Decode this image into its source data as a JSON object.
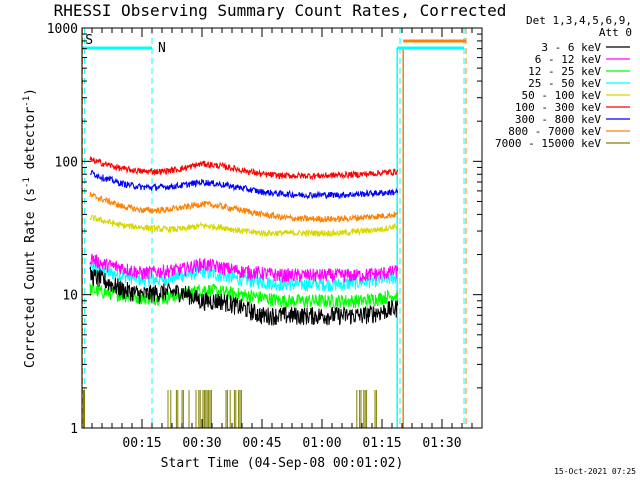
{
  "chart_data": {
    "type": "line",
    "title": "RHESSI Observing Summary Count Rates, Corrected",
    "xlabel": "Start Time (04-Sep-08 00:01:02)",
    "ylabel": "Corrected Count Rate (s",
    "ylabel_exp1": "-1",
    "ylabel_mid": " detector",
    "ylabel_exp2": "-1",
    "ylabel_end": ")",
    "yscale": "log",
    "ylim": [
      1,
      1000
    ],
    "xlim_minutes": [
      0,
      100
    ],
    "x_ticks": [
      {
        "label": "00:15",
        "minute": 15
      },
      {
        "label": "00:30",
        "minute": 30
      },
      {
        "label": "00:45",
        "minute": 45
      },
      {
        "label": "01:00",
        "minute": 60
      },
      {
        "label": "01:15",
        "minute": 75
      },
      {
        "label": "01:30",
        "minute": 90
      }
    ],
    "y_ticks": [
      {
        "label": "1",
        "value": 1
      },
      {
        "label": "10",
        "value": 10
      },
      {
        "label": "100",
        "value": 100
      },
      {
        "label": "1000",
        "value": 1000
      }
    ],
    "legend_header": [
      "Det 1,3,4,5,6,9,",
      "Att 0"
    ],
    "legend_placement": "right",
    "series": [
      {
        "name": "3 - 6 keV",
        "color": "#000000",
        "x": [
          2,
          5,
          10,
          15,
          20,
          25,
          30,
          35,
          40,
          45,
          50,
          55,
          60,
          65,
          70,
          75,
          79
        ],
        "values": [
          14,
          13,
          11,
          10,
          10.5,
          10.5,
          9,
          9,
          8,
          7,
          7,
          7,
          7,
          7,
          7,
          7.5,
          8
        ]
      },
      {
        "name": "6 - 12 keV",
        "color": "#ff00ff",
        "x": [
          2,
          5,
          10,
          15,
          20,
          25,
          30,
          35,
          40,
          45,
          50,
          55,
          60,
          65,
          70,
          75,
          79
        ],
        "values": [
          19,
          17,
          16,
          14.5,
          15,
          15.5,
          17,
          16,
          15,
          14.5,
          14,
          14,
          14,
          14,
          14,
          14.5,
          15
        ]
      },
      {
        "name": "12 - 25 keV",
        "color": "#00ff00",
        "x": [
          2,
          5,
          10,
          15,
          20,
          25,
          30,
          35,
          40,
          45,
          50,
          55,
          60,
          65,
          70,
          75,
          79
        ],
        "values": [
          11,
          10.5,
          10,
          9.5,
          9.5,
          10,
          11,
          10.5,
          10,
          9.5,
          9,
          9,
          9,
          9,
          9,
          9.5,
          10
        ]
      },
      {
        "name": "25 - 50 keV",
        "color": "#00ffff",
        "x": [
          2,
          5,
          10,
          15,
          20,
          25,
          30,
          35,
          40,
          45,
          50,
          55,
          60,
          65,
          70,
          75,
          79
        ],
        "values": [
          16,
          15,
          14,
          13,
          13,
          14,
          15,
          14,
          13,
          12.5,
          12,
          12,
          12,
          12,
          12.5,
          13,
          13.5
        ]
      },
      {
        "name": "50 - 100 keV",
        "color": "#d8d800",
        "x": [
          2,
          5,
          10,
          15,
          20,
          25,
          30,
          35,
          40,
          45,
          50,
          55,
          60,
          65,
          70,
          75,
          79
        ],
        "values": [
          38,
          36,
          33,
          32,
          31,
          31,
          33,
          32,
          30,
          29,
          29,
          29,
          29,
          29,
          30,
          31,
          33
        ]
      },
      {
        "name": "100 - 300 keV",
        "color": "#ff0000",
        "x": [
          2,
          5,
          10,
          15,
          20,
          25,
          30,
          35,
          40,
          45,
          50,
          55,
          60,
          65,
          70,
          75,
          79
        ],
        "values": [
          103,
          97,
          88,
          84,
          84,
          88,
          96,
          92,
          86,
          80,
          78,
          78,
          78,
          79,
          80,
          82,
          84
        ]
      },
      {
        "name": "300 - 800 keV",
        "color": "#0000ff",
        "x": [
          2,
          5,
          10,
          15,
          20,
          25,
          30,
          35,
          40,
          45,
          50,
          55,
          60,
          65,
          70,
          75,
          79
        ],
        "values": [
          83,
          76,
          68,
          64,
          64,
          66,
          70,
          67,
          63,
          59,
          57,
          56,
          56,
          56,
          57,
          58,
          59
        ]
      },
      {
        "name": "800 - 7000 keV",
        "color": "#ff8000",
        "x": [
          2,
          5,
          10,
          15,
          20,
          25,
          30,
          35,
          40,
          45,
          50,
          55,
          60,
          65,
          70,
          75,
          79
        ],
        "values": [
          56,
          52,
          46,
          43,
          43,
          45,
          48,
          46,
          43,
          40,
          38,
          37,
          37,
          37,
          38,
          39,
          40
        ]
      },
      {
        "name": "7000 - 15000 keV",
        "color": "#808000",
        "x": [],
        "values": []
      }
    ],
    "bar_annotations": [
      {
        "label": "S",
        "color": "#ff8000"
      },
      {
        "label": "N",
        "color": "#00ffff"
      }
    ]
  },
  "timestamp": "15-Oct-2021 07:25"
}
